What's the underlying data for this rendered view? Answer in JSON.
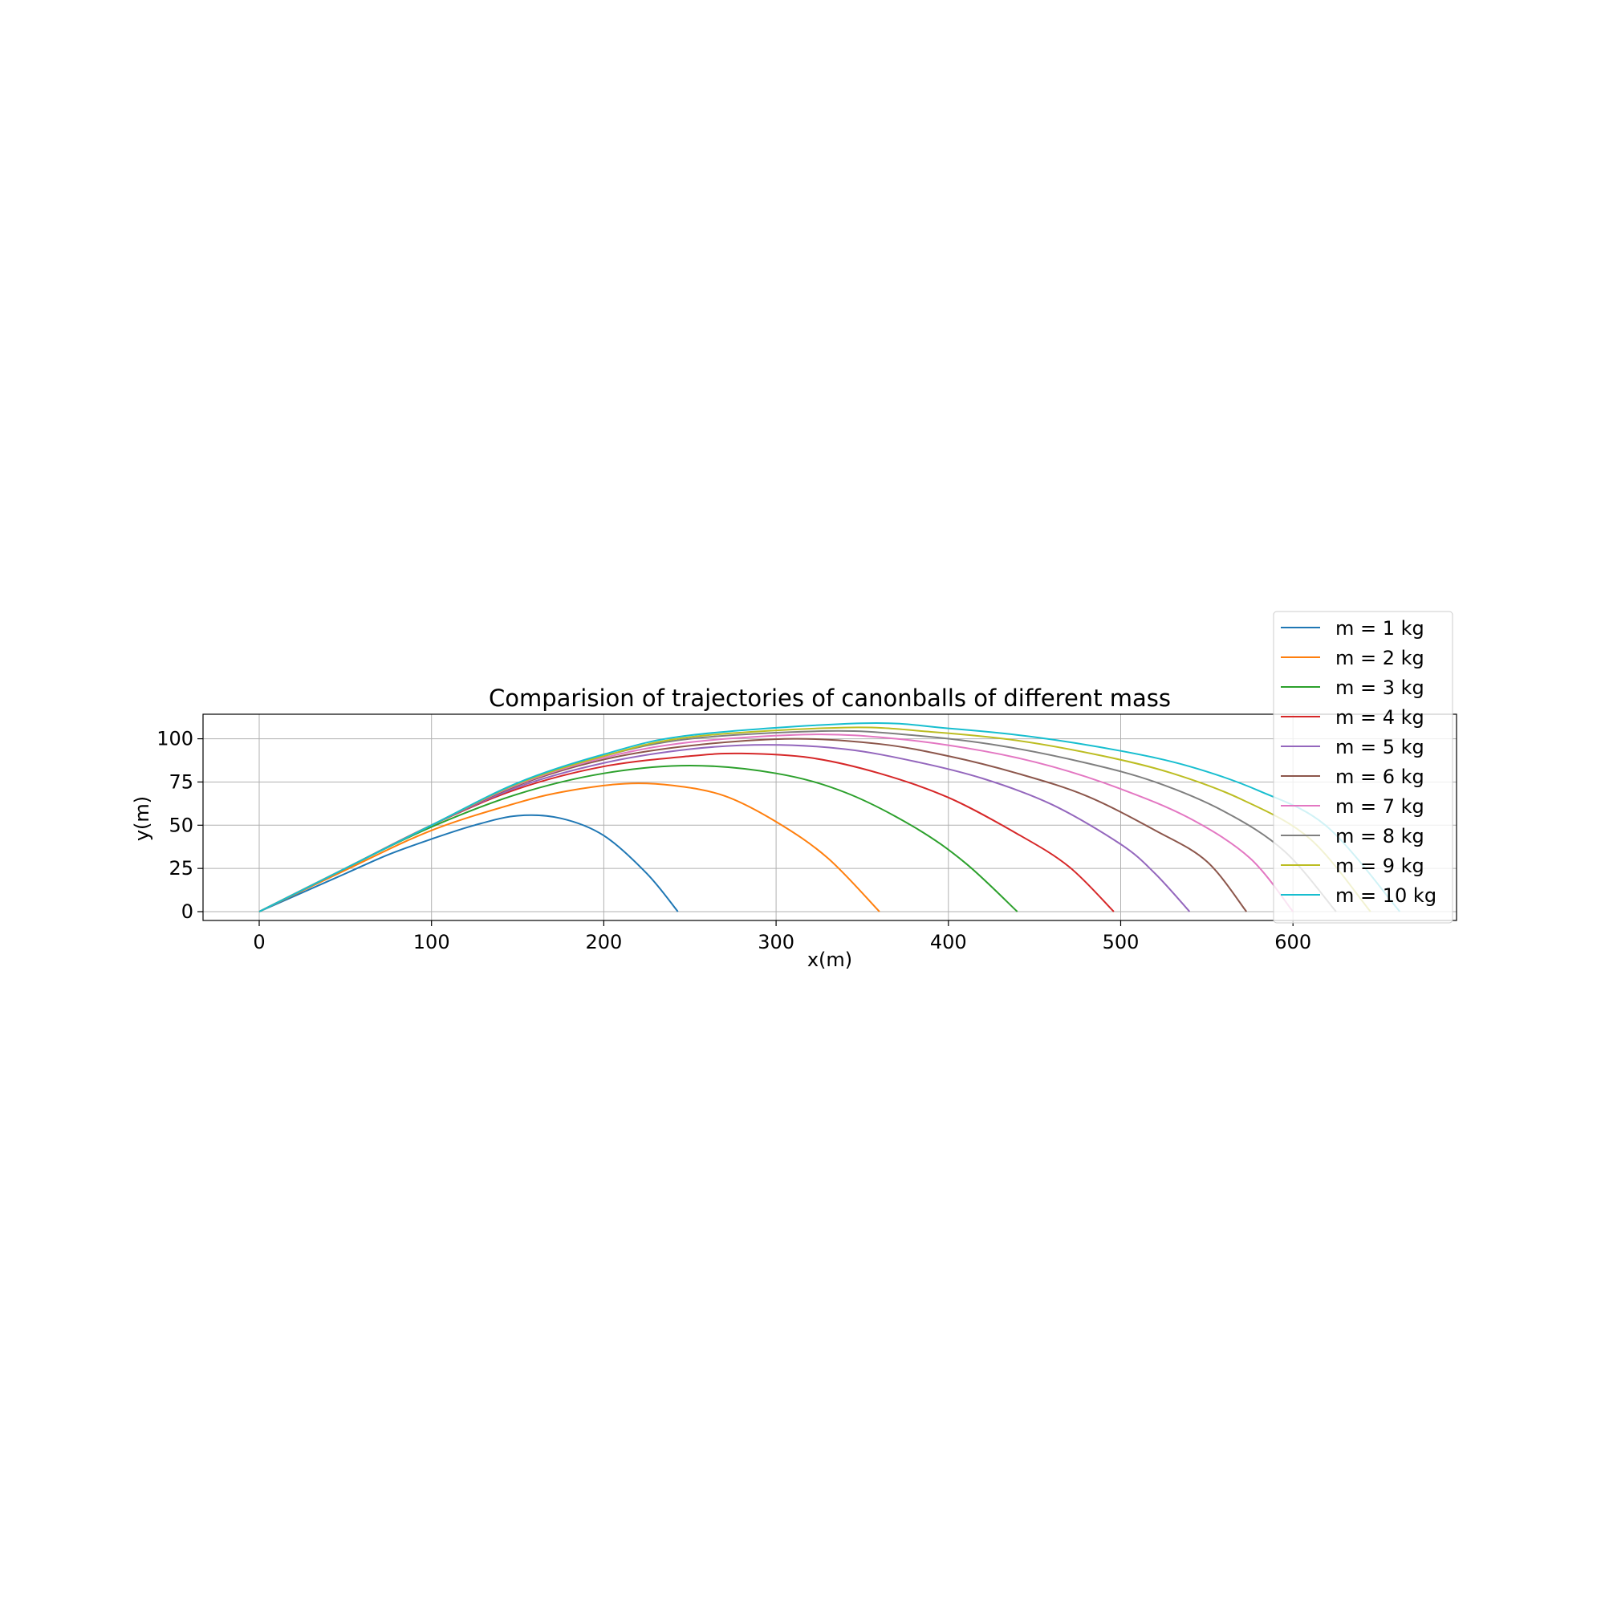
{
  "chart_data": {
    "type": "line",
    "title": "Comparision of trajectories of canonballs of different mass",
    "xlabel": "x(m)",
    "ylabel": "y(m)",
    "xlim": [
      -33,
      695
    ],
    "ylim": [
      -5,
      115
    ],
    "xticks": [
      0,
      100,
      200,
      300,
      400,
      500,
      600
    ],
    "yticks": [
      0,
      25,
      50,
      75,
      100
    ],
    "grid": true,
    "legend_position": "top-right",
    "series": [
      {
        "name": "m = 1 kg",
        "color": "#1f77b4",
        "points": [
          [
            0,
            0
          ],
          [
            25,
            11
          ],
          [
            50,
            22
          ],
          [
            75,
            33
          ],
          [
            100,
            42
          ],
          [
            125,
            50
          ],
          [
            150,
            55.5
          ],
          [
            175,
            54
          ],
          [
            200,
            44
          ],
          [
            225,
            22
          ],
          [
            243,
            0
          ]
        ]
      },
      {
        "name": "m = 2 kg",
        "color": "#ff7f0e",
        "points": [
          [
            0,
            0
          ],
          [
            50,
            24
          ],
          [
            100,
            47
          ],
          [
            150,
            63
          ],
          [
            180,
            70
          ],
          [
            212,
            74
          ],
          [
            240,
            73
          ],
          [
            270,
            67
          ],
          [
            300,
            52
          ],
          [
            330,
            31
          ],
          [
            360,
            0
          ]
        ]
      },
      {
        "name": "m = 3 kg",
        "color": "#2ca02c",
        "points": [
          [
            0,
            0
          ],
          [
            50,
            25
          ],
          [
            100,
            49
          ],
          [
            150,
            68
          ],
          [
            200,
            80
          ],
          [
            250,
            84.5
          ],
          [
            300,
            80
          ],
          [
            340,
            69
          ],
          [
            380,
            49
          ],
          [
            410,
            28
          ],
          [
            440,
            0
          ]
        ]
      },
      {
        "name": "m = 4 kg",
        "color": "#d62728",
        "points": [
          [
            0,
            0
          ],
          [
            50,
            25
          ],
          [
            100,
            50
          ],
          [
            150,
            71
          ],
          [
            200,
            84
          ],
          [
            250,
            90
          ],
          [
            280,
            91.5
          ],
          [
            320,
            89
          ],
          [
            360,
            80
          ],
          [
            400,
            66
          ],
          [
            440,
            45
          ],
          [
            470,
            26
          ],
          [
            496,
            0
          ]
        ]
      },
      {
        "name": "m = 5 kg",
        "color": "#9467bd",
        "points": [
          [
            0,
            0
          ],
          [
            50,
            25
          ],
          [
            100,
            50
          ],
          [
            150,
            72
          ],
          [
            200,
            86
          ],
          [
            250,
            94
          ],
          [
            295,
            96.5
          ],
          [
            340,
            94
          ],
          [
            380,
            87
          ],
          [
            420,
            77
          ],
          [
            460,
            62
          ],
          [
            500,
            39
          ],
          [
            520,
            22
          ],
          [
            540,
            0
          ]
        ]
      },
      {
        "name": "m = 6 kg",
        "color": "#8c564b",
        "points": [
          [
            0,
            0
          ],
          [
            50,
            25
          ],
          [
            100,
            50
          ],
          [
            150,
            73
          ],
          [
            200,
            88
          ],
          [
            250,
            96
          ],
          [
            310,
            100
          ],
          [
            360,
            97
          ],
          [
            400,
            90
          ],
          [
            440,
            80
          ],
          [
            480,
            67
          ],
          [
            520,
            47
          ],
          [
            550,
            29
          ],
          [
            573,
            0
          ]
        ]
      },
      {
        "name": "m = 7 kg",
        "color": "#e377c2",
        "points": [
          [
            0,
            0
          ],
          [
            50,
            25
          ],
          [
            100,
            50
          ],
          [
            150,
            73.5
          ],
          [
            200,
            89
          ],
          [
            250,
            98
          ],
          [
            320,
            102.5
          ],
          [
            370,
            100
          ],
          [
            420,
            93
          ],
          [
            460,
            84
          ],
          [
            500,
            71
          ],
          [
            540,
            54
          ],
          [
            575,
            31
          ],
          [
            600,
            0
          ]
        ]
      },
      {
        "name": "m = 8 kg",
        "color": "#7f7f7f",
        "points": [
          [
            0,
            0
          ],
          [
            50,
            25
          ],
          [
            100,
            50
          ],
          [
            150,
            74
          ],
          [
            200,
            90
          ],
          [
            250,
            100
          ],
          [
            330,
            104.5
          ],
          [
            380,
            102
          ],
          [
            430,
            96
          ],
          [
            480,
            86
          ],
          [
            520,
            75
          ],
          [
            560,
            58
          ],
          [
            595,
            35
          ],
          [
            625,
            0
          ]
        ]
      },
      {
        "name": "m = 9 kg",
        "color": "#bcbd22",
        "points": [
          [
            0,
            0
          ],
          [
            50,
            25
          ],
          [
            100,
            50
          ],
          [
            150,
            74
          ],
          [
            200,
            90
          ],
          [
            250,
            101
          ],
          [
            340,
            106.5
          ],
          [
            390,
            104
          ],
          [
            440,
            99
          ],
          [
            490,
            90
          ],
          [
            530,
            80
          ],
          [
            570,
            65
          ],
          [
            610,
            42
          ],
          [
            645,
            0
          ]
        ]
      },
      {
        "name": "m = 10 kg",
        "color": "#17becf",
        "points": [
          [
            0,
            0
          ],
          [
            50,
            25
          ],
          [
            100,
            50
          ],
          [
            150,
            74.5
          ],
          [
            200,
            91
          ],
          [
            250,
            102
          ],
          [
            350,
            109
          ],
          [
            400,
            106
          ],
          [
            450,
            101
          ],
          [
            500,
            93
          ],
          [
            540,
            84
          ],
          [
            580,
            70
          ],
          [
            620,
            49
          ],
          [
            662,
            0
          ]
        ]
      }
    ]
  }
}
